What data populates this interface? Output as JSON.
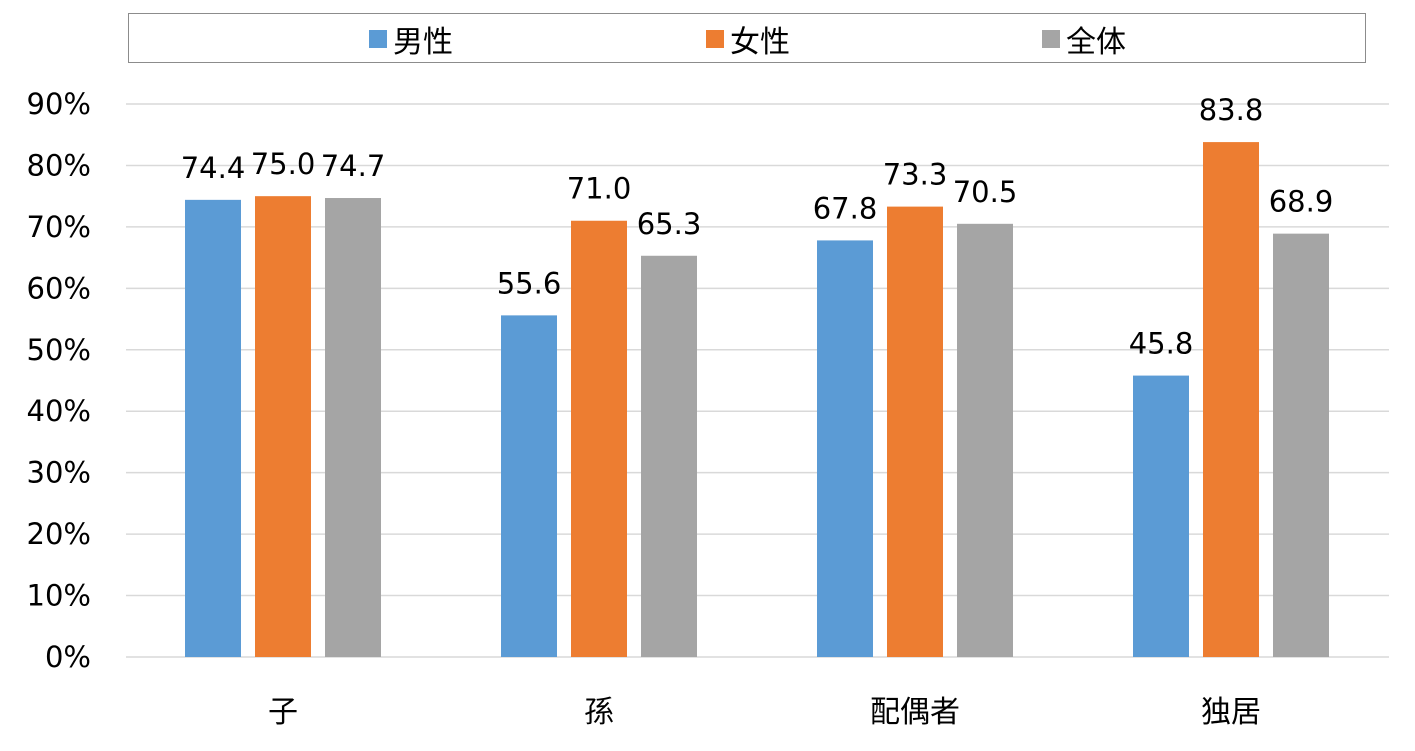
{
  "colors": {
    "男性": "#5b9bd5",
    "女性": "#ed7d31",
    "全体": "#a5a5a5",
    "grid": "#d9d9d9"
  },
  "chart_data": {
    "type": "bar",
    "categories": [
      "子",
      "孫",
      "配偶者",
      "独居"
    ],
    "series": [
      {
        "name": "男性",
        "values": [
          74.4,
          55.6,
          67.8,
          45.8
        ]
      },
      {
        "name": "女性",
        "values": [
          75.0,
          71.0,
          73.3,
          83.8
        ]
      },
      {
        "name": "全体",
        "values": [
          74.7,
          65.3,
          70.5,
          68.9
        ]
      }
    ],
    "data_labels": [
      [
        "74.4",
        "55.6",
        "67.8",
        "45.8"
      ],
      [
        "75.0",
        "71.0",
        "73.3",
        "83.8"
      ],
      [
        "74.7",
        "65.3",
        "70.5",
        "68.9"
      ]
    ],
    "y_ticks": [
      "0%",
      "10%",
      "20%",
      "30%",
      "40%",
      "50%",
      "60%",
      "70%",
      "80%",
      "90%"
    ],
    "ylim": [
      0,
      90
    ],
    "grid": true,
    "legend_position": "top"
  }
}
